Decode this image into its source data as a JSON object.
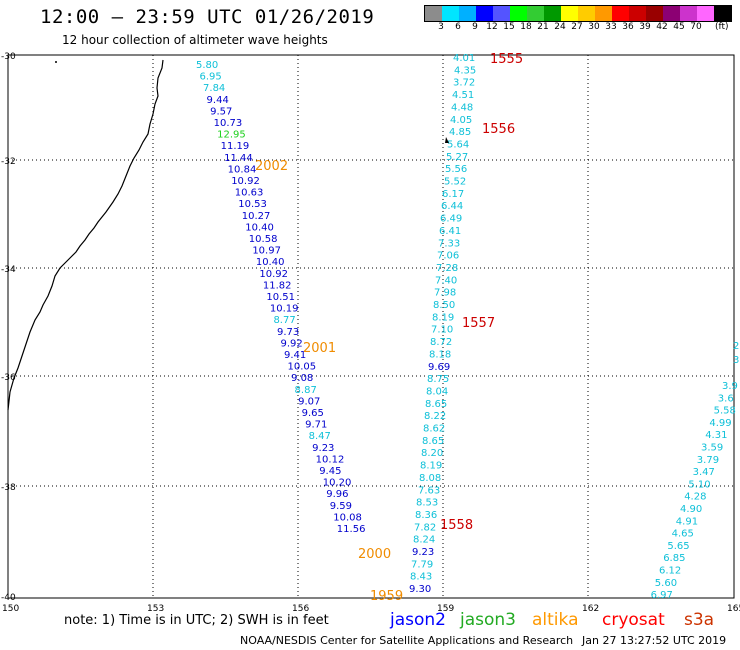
{
  "header": {
    "title": "12:00 – 23:59 UTC 01/26/2019",
    "subtitle": "12 hour collection of altimeter wave heights"
  },
  "legend": {
    "colors": [
      "#8c8c8c",
      "#00e5ff",
      "#00b0ff",
      "#0000ff",
      "#5454ff",
      "#00ff00",
      "#33cc33",
      "#009900",
      "#ffff00",
      "#ffcc00",
      "#ff9900",
      "#ff0000",
      "#cc0000",
      "#990000",
      "#8c0073",
      "#cc33cc",
      "#ff66ff",
      "#000000"
    ],
    "labels": [
      "3",
      "6",
      "9",
      "12",
      "15",
      "18",
      "21",
      "24",
      "27",
      "30",
      "33",
      "36",
      "39",
      "42",
      "45",
      "70"
    ],
    "unit": "(ft)"
  },
  "map": {
    "lat_ticks": [
      "-30",
      "-32",
      "-34",
      "-36",
      "-38",
      "-40"
    ],
    "lon_ticks": [
      "150",
      "153",
      "156",
      "159",
      "162",
      "165"
    ],
    "track_colors": {
      "jason2": "#0000cc",
      "jason3": "#1bd01b",
      "altika": "#f08c00",
      "cryosat": "#cc0000",
      "s3a": "#0fc0d8",
      "label": "#009933"
    },
    "tracks": [
      {
        "name": "altika-descending",
        "color_key": "altika",
        "label_color": "altika",
        "labels": [
          {
            "text": "2002",
            "idx": 10
          },
          {
            "text": "2001",
            "idx": 23
          },
          {
            "text": "2000",
            "idx": 44
          },
          {
            "text": "1959",
            "idx": 48
          }
        ],
        "points": [
          {
            "v": "5.80",
            "c": "s3a"
          },
          {
            "v": "6.95",
            "c": "s3a"
          },
          {
            "v": "7.84",
            "c": "s3a"
          },
          {
            "v": "9.44",
            "c": "jason2"
          },
          {
            "v": "9.57",
            "c": "jason2"
          },
          {
            "v": "10.73",
            "c": "jason2"
          },
          {
            "v": "12.95",
            "c": "jason3"
          },
          {
            "v": "11.19",
            "c": "jason2"
          },
          {
            "v": "11.44",
            "c": "jason2"
          },
          {
            "v": "10.84",
            "c": "jason2"
          },
          {
            "v": "10.92",
            "c": "jason2"
          },
          {
            "v": "10.63",
            "c": "jason2"
          },
          {
            "v": "10.53",
            "c": "jason2"
          },
          {
            "v": "10.27",
            "c": "jason2"
          },
          {
            "v": "10.40",
            "c": "jason2"
          },
          {
            "v": "10.58",
            "c": "jason2"
          },
          {
            "v": "10.97",
            "c": "jason2"
          },
          {
            "v": "10.40",
            "c": "jason2"
          },
          {
            "v": "10.92",
            "c": "jason2"
          },
          {
            "v": "11.82",
            "c": "jason2"
          },
          {
            "v": "10.51",
            "c": "jason2"
          },
          {
            "v": "10.19",
            "c": "jason2"
          },
          {
            "v": "8.77",
            "c": "s3a"
          },
          {
            "v": "9.73",
            "c": "jason2"
          },
          {
            "v": "9.92",
            "c": "jason2"
          },
          {
            "v": "9.41",
            "c": "jason2"
          },
          {
            "v": "10.05",
            "c": "jason2"
          },
          {
            "v": "9.08",
            "c": "jason2"
          },
          {
            "v": "8.87",
            "c": "s3a"
          },
          {
            "v": "9.07",
            "c": "jason2"
          },
          {
            "v": "9.65",
            "c": "jason2"
          },
          {
            "v": "9.71",
            "c": "jason2"
          },
          {
            "v": "8.47",
            "c": "s3a"
          },
          {
            "v": "9.23",
            "c": "jason2"
          },
          {
            "v": "10.12",
            "c": "jason2"
          },
          {
            "v": "9.45",
            "c": "jason2"
          },
          {
            "v": "10.20",
            "c": "jason2"
          },
          {
            "v": "9.96",
            "c": "jason2"
          },
          {
            "v": "9.59",
            "c": "jason2"
          },
          {
            "v": "10.08",
            "c": "jason2"
          },
          {
            "v": "11.56",
            "c": "jason2"
          }
        ]
      },
      {
        "name": "cryosat-ascending",
        "color_key": "cryosat",
        "label_color": "cryosat",
        "labels": [
          {
            "text": "1555",
            "idx": 0
          },
          {
            "text": "1556",
            "idx": 6
          },
          {
            "text": "1557",
            "idx": 25
          },
          {
            "text": "1558",
            "idx": 44
          }
        ],
        "points": [
          {
            "v": "4.01",
            "c": "s3a"
          },
          {
            "v": "4.35",
            "c": "s3a"
          },
          {
            "v": "3.72",
            "c": "s3a"
          },
          {
            "v": "4.51",
            "c": "s3a"
          },
          {
            "v": "4.48",
            "c": "s3a"
          },
          {
            "v": "4.05",
            "c": "s3a"
          },
          {
            "v": "4.85",
            "c": "s3a"
          },
          {
            "v": "5.64",
            "c": "s3a"
          },
          {
            "v": "5.27",
            "c": "s3a"
          },
          {
            "v": "5.56",
            "c": "s3a"
          },
          {
            "v": "5.52",
            "c": "s3a"
          },
          {
            "v": "6.17",
            "c": "s3a"
          },
          {
            "v": "6.44",
            "c": "s3a"
          },
          {
            "v": "6.49",
            "c": "s3a"
          },
          {
            "v": "6.41",
            "c": "s3a"
          },
          {
            "v": "7.33",
            "c": "s3a"
          },
          {
            "v": "7.06",
            "c": "s3a"
          },
          {
            "v": "7.28",
            "c": "s3a"
          },
          {
            "v": "7.40",
            "c": "s3a"
          },
          {
            "v": "7.98",
            "c": "s3a"
          },
          {
            "v": "8.50",
            "c": "s3a"
          },
          {
            "v": "8.19",
            "c": "s3a"
          },
          {
            "v": "7.10",
            "c": "s3a"
          },
          {
            "v": "8.72",
            "c": "s3a"
          },
          {
            "v": "8.18",
            "c": "s3a"
          },
          {
            "v": "9.69",
            "c": "jason2"
          },
          {
            "v": "8.75",
            "c": "s3a"
          },
          {
            "v": "8.04",
            "c": "s3a"
          },
          {
            "v": "8.65",
            "c": "s3a"
          },
          {
            "v": "8.22",
            "c": "s3a"
          },
          {
            "v": "8.62",
            "c": "s3a"
          },
          {
            "v": "8.65",
            "c": "s3a"
          },
          {
            "v": "8.20",
            "c": "s3a"
          },
          {
            "v": "8.19",
            "c": "s3a"
          },
          {
            "v": "8.08",
            "c": "s3a"
          },
          {
            "v": "7.63",
            "c": "s3a"
          },
          {
            "v": "8.53",
            "c": "s3a"
          },
          {
            "v": "8.36",
            "c": "s3a"
          },
          {
            "v": "7.82",
            "c": "s3a"
          },
          {
            "v": "8.24",
            "c": "s3a"
          },
          {
            "v": "9.23",
            "c": "jason2"
          },
          {
            "v": "7.79",
            "c": "s3a"
          },
          {
            "v": "8.43",
            "c": "s3a"
          },
          {
            "v": "9.30",
            "c": "jason2"
          }
        ]
      },
      {
        "name": "s3a-track-right",
        "color_key": "s3a",
        "label_color": "s3a",
        "labels": [],
        "points": [
          {
            "v": "3.9",
            "c": "s3a"
          },
          {
            "v": "3.6",
            "c": "s3a"
          },
          {
            "v": "5.58",
            "c": "s3a"
          },
          {
            "v": "4.99",
            "c": "s3a"
          },
          {
            "v": "4.31",
            "c": "s3a"
          },
          {
            "v": "3.59",
            "c": "s3a"
          },
          {
            "v": "3.79",
            "c": "s3a"
          },
          {
            "v": "3.47",
            "c": "s3a"
          },
          {
            "v": "5.10",
            "c": "s3a"
          },
          {
            "v": "4.28",
            "c": "s3a"
          },
          {
            "v": "4.90",
            "c": "s3a"
          },
          {
            "v": "4.91",
            "c": "s3a"
          },
          {
            "v": "4.65",
            "c": "s3a"
          },
          {
            "v": "5.65",
            "c": "s3a"
          },
          {
            "v": "6.85",
            "c": "s3a"
          },
          {
            "v": "6.12",
            "c": "s3a"
          },
          {
            "v": "5.60",
            "c": "s3a"
          },
          {
            "v": "6.97",
            "c": "s3a"
          }
        ]
      }
    ],
    "edge_fragments": [
      {
        "text": "2",
        "color_key": "s3a"
      },
      {
        "text": "3",
        "color_key": "s3a"
      }
    ]
  },
  "footer": {
    "note": "note: 1) Time is in UTC; 2) SWH is in feet",
    "missions": [
      {
        "name": "jason2",
        "color": "#0000ff"
      },
      {
        "name": "jason3",
        "color": "#22aa22"
      },
      {
        "name": "altika",
        "color": "#ff9900"
      },
      {
        "name": "cryosat",
        "color": "#ff0000"
      },
      {
        "name": "s3a",
        "color": "#cc3300"
      }
    ],
    "credit": "NOAA/NESDIS Center for Satellite Applications and Research",
    "timestamp": "Jan 27 13:27:52 UTC 2019"
  }
}
